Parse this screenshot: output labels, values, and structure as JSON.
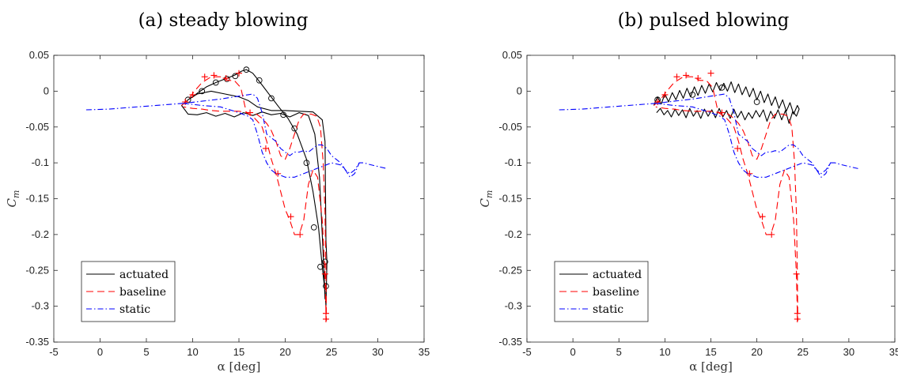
{
  "chart_data": [
    {
      "type": "line",
      "title": "(a) steady blowing",
      "xlabel": "α [deg]",
      "ylabel": "C_m",
      "xlim": [
        -5,
        35
      ],
      "ylim": [
        -0.35,
        0.05
      ],
      "xticks": [
        -5,
        0,
        5,
        10,
        15,
        20,
        25,
        30,
        35
      ],
      "yticks": [
        0.05,
        0,
        -0.05,
        -0.1,
        -0.15,
        -0.2,
        -0.25,
        -0.3,
        -0.35
      ],
      "ytick_labels": [
        "0.05",
        "0",
        "-0.05",
        "-0.1",
        "-0.15",
        "-0.2",
        "-0.25",
        "-0.3",
        "-0.35"
      ],
      "grid": false,
      "legend_position": "bottom-left",
      "series": [
        {
          "name": "actuated",
          "color": "#000000",
          "style": "solid",
          "marker": "circle",
          "x": [
            8.8,
            9.5,
            10.5,
            11.5,
            12.5,
            13.5,
            14.5,
            15.3,
            15.8,
            16.5,
            17.3,
            18.3,
            19.3,
            20.3,
            21.3,
            22.3,
            23.0,
            23.6,
            24.0,
            24.3,
            24.4,
            24.5,
            24.4,
            24.3,
            24.0,
            23.0,
            21.5,
            20.0,
            18.5,
            17.0,
            16.0,
            15.0,
            13.5,
            12.0,
            10.5,
            9.5,
            8.8,
            9.5,
            10.5,
            11.5,
            12.5,
            13.5,
            14.5,
            15.5,
            16.5,
            17.5,
            18.5,
            19.5,
            20.5,
            21.5,
            22.5,
            23.2,
            23.7,
            24.0,
            24.2,
            24.3
          ],
          "y": [
            -0.02,
            -0.012,
            -0.003,
            0.006,
            0.012,
            0.017,
            0.022,
            0.028,
            0.03,
            0.025,
            0.012,
            -0.005,
            -0.022,
            -0.038,
            -0.06,
            -0.095,
            -0.14,
            -0.19,
            -0.245,
            -0.28,
            -0.3,
            -0.238,
            -0.21,
            -0.07,
            -0.04,
            -0.029,
            -0.028,
            -0.027,
            -0.027,
            -0.022,
            -0.013,
            -0.008,
            -0.004,
            0.0,
            -0.004,
            -0.012,
            -0.02,
            -0.032,
            -0.033,
            -0.03,
            -0.035,
            -0.031,
            -0.036,
            -0.03,
            -0.034,
            -0.029,
            -0.033,
            -0.031,
            -0.036,
            -0.03,
            -0.034,
            -0.06,
            -0.12,
            -0.2,
            -0.255,
            -0.29
          ],
          "marker_x": [
            9.5,
            11.0,
            12.5,
            13.7,
            14.6,
            15.8,
            17.2,
            18.5,
            19.8,
            21.0,
            22.3,
            23.1,
            23.8,
            24.3,
            24.4
          ],
          "marker_y": [
            -0.012,
            0.0,
            0.012,
            0.017,
            0.021,
            0.03,
            0.015,
            -0.01,
            -0.033,
            -0.052,
            -0.1,
            -0.19,
            -0.245,
            -0.238,
            -0.272
          ]
        },
        {
          "name": "baseline",
          "color": "#ff0000",
          "style": "dashed",
          "marker": "plus",
          "x": [
            8.8,
            9.5,
            10.2,
            11.0,
            12.0,
            13.0,
            13.8,
            14.5,
            15.2,
            15.8,
            16.5,
            17.0,
            17.5,
            18.0,
            18.5,
            19.0,
            19.5,
            20.0,
            20.5,
            21.0,
            21.5,
            22.0,
            22.5,
            23.0,
            23.5,
            24.0,
            24.3,
            24.4,
            24.45,
            24.4,
            24.3,
            24.1,
            23.8,
            23.4,
            22.8,
            22.0,
            21.5,
            21.0,
            20.5,
            20.0,
            19.5,
            19.0,
            18.5,
            18.0,
            17.5,
            17.0,
            16.5,
            16.0,
            15.0,
            14.0,
            13.0,
            12.0,
            11.0,
            10.0,
            9.0
          ],
          "y": [
            -0.02,
            -0.012,
            0.0,
            0.012,
            0.02,
            0.02,
            0.015,
            0.015,
            0.005,
            -0.03,
            -0.035,
            -0.042,
            -0.05,
            -0.07,
            -0.095,
            -0.115,
            -0.14,
            -0.165,
            -0.18,
            -0.2,
            -0.2,
            -0.18,
            -0.13,
            -0.11,
            -0.12,
            -0.18,
            -0.255,
            -0.31,
            -0.32,
            -0.255,
            -0.17,
            -0.1,
            -0.05,
            -0.035,
            -0.032,
            -0.032,
            -0.04,
            -0.06,
            -0.08,
            -0.095,
            -0.09,
            -0.07,
            -0.055,
            -0.045,
            -0.038,
            -0.033,
            -0.03,
            -0.03,
            -0.028,
            -0.028,
            -0.028,
            -0.027,
            -0.025,
            -0.024,
            -0.022
          ],
          "marker_x": [
            9.2,
            10.0,
            11.3,
            12.3,
            13.6,
            15.0,
            16.2,
            17.9,
            19.2,
            20.6,
            21.6,
            24.3,
            24.4,
            24.4
          ],
          "marker_y": [
            -0.015,
            -0.005,
            0.02,
            0.022,
            0.018,
            0.025,
            -0.03,
            -0.08,
            -0.115,
            -0.175,
            -0.2,
            -0.255,
            -0.31,
            -0.318
          ]
        },
        {
          "name": "static",
          "color": "#0000ff",
          "style": "dashdot",
          "x": [
            -1.5,
            1.0,
            3.0,
            5.0,
            7.0,
            9.0,
            11.0,
            13.0,
            15.0,
            16.0,
            16.5,
            17.0,
            17.5,
            18.0,
            18.5,
            19.0,
            19.5,
            20.0,
            20.5,
            21.0,
            21.5,
            22.0,
            22.5,
            23.0,
            23.5,
            24.0,
            24.5,
            25.0,
            25.5,
            26.0,
            26.5,
            27.0,
            27.5,
            28.0,
            28.5,
            29.0,
            30.0,
            31.0
          ],
          "y": [
            -0.026,
            -0.025,
            -0.023,
            -0.021,
            -0.019,
            -0.017,
            -0.014,
            -0.011,
            -0.007,
            -0.005,
            -0.004,
            -0.01,
            -0.03,
            -0.06,
            -0.065,
            -0.07,
            -0.08,
            -0.085,
            -0.09,
            -0.085,
            -0.085,
            -0.083,
            -0.085,
            -0.08,
            -0.075,
            -0.075,
            -0.08,
            -0.09,
            -0.095,
            -0.1,
            -0.11,
            -0.115,
            -0.11,
            -0.1,
            -0.1,
            -0.102,
            -0.105,
            -0.108
          ]
        },
        {
          "name": "",
          "color": "#0000ff",
          "style": "dashdot",
          "x": [
            9.0,
            11.0,
            13.0,
            15.0,
            16.0,
            16.5,
            17.0,
            17.5,
            18.0,
            18.5,
            19.0,
            20.0,
            21.0,
            22.0,
            23.0,
            24.0,
            25.0,
            26.0,
            26.5,
            27.0,
            27.5,
            28.0
          ],
          "y": [
            -0.017,
            -0.02,
            -0.022,
            -0.03,
            -0.035,
            -0.04,
            -0.06,
            -0.085,
            -0.1,
            -0.11,
            -0.115,
            -0.12,
            -0.12,
            -0.115,
            -0.11,
            -0.105,
            -0.1,
            -0.103,
            -0.11,
            -0.12,
            -0.115,
            -0.1
          ]
        }
      ]
    },
    {
      "type": "line",
      "title": "(b) pulsed blowing",
      "xlabel": "α [deg]",
      "ylabel": "C_m",
      "xlim": [
        -5,
        35
      ],
      "ylim": [
        -0.35,
        0.05
      ],
      "xticks": [
        -5,
        0,
        5,
        10,
        15,
        20,
        25,
        30,
        35
      ],
      "yticks": [
        0.05,
        0,
        -0.05,
        -0.1,
        -0.15,
        -0.2,
        -0.25,
        -0.3,
        -0.35
      ],
      "ytick_labels": [
        "0.05",
        "0",
        "-0.05",
        "-0.1",
        "-0.15",
        "-0.2",
        "-0.25",
        "-0.3",
        "-0.35"
      ],
      "grid": false,
      "legend_position": "bottom-left",
      "series": [
        {
          "name": "actuated",
          "color": "#000000",
          "style": "solid",
          "marker": "circle",
          "x": [
            8.8,
            9.2,
            9.6,
            10.0,
            10.4,
            10.8,
            11.2,
            11.6,
            12.0,
            12.4,
            12.8,
            13.2,
            13.6,
            14.0,
            14.4,
            14.8,
            15.2,
            15.6,
            16.0,
            16.4,
            16.8,
            17.2,
            17.6,
            18.0,
            18.4,
            18.8,
            19.2,
            19.6,
            20.0,
            20.4,
            20.8,
            21.2,
            21.6,
            22.0,
            22.4,
            22.8,
            23.2,
            23.6,
            24.0,
            24.4,
            24.6,
            24.3,
            23.9,
            23.5,
            23.1,
            22.7,
            22.3,
            21.9,
            21.5,
            21.1,
            20.7,
            20.3,
            19.9,
            19.5,
            19.1,
            18.7,
            18.3,
            17.9,
            17.5,
            17.1,
            16.7,
            16.3,
            15.9,
            15.5,
            15.1,
            14.7,
            14.3,
            13.9,
            13.5,
            13.1,
            12.7,
            12.3,
            11.9,
            11.5,
            11.1,
            10.7,
            10.3,
            9.9,
            9.5,
            9.1
          ],
          "y": [
            -0.02,
            -0.008,
            -0.018,
            -0.004,
            -0.015,
            -0.002,
            -0.012,
            0.001,
            -0.01,
            0.004,
            -0.008,
            0.006,
            -0.006,
            0.008,
            -0.003,
            0.01,
            -0.001,
            0.012,
            0.001,
            0.011,
            0.0,
            0.013,
            -0.002,
            0.01,
            -0.005,
            0.006,
            -0.008,
            0.004,
            -0.012,
            0.0,
            -0.016,
            -0.004,
            -0.02,
            -0.008,
            -0.024,
            -0.012,
            -0.028,
            -0.016,
            -0.032,
            -0.02,
            -0.025,
            -0.035,
            -0.028,
            -0.045,
            -0.027,
            -0.04,
            -0.026,
            -0.038,
            -0.028,
            -0.042,
            -0.026,
            -0.036,
            -0.027,
            -0.038,
            -0.03,
            -0.04,
            -0.028,
            -0.037,
            -0.025,
            -0.038,
            -0.027,
            -0.036,
            -0.024,
            -0.037,
            -0.026,
            -0.035,
            -0.025,
            -0.038,
            -0.027,
            -0.035,
            -0.024,
            -0.037,
            -0.026,
            -0.034,
            -0.025,
            -0.036,
            -0.027,
            -0.033,
            -0.024,
            -0.03
          ],
          "marker_x": [
            9.2,
            13.0,
            16.2,
            20.0
          ],
          "marker_y": [
            -0.012,
            -0.005,
            0.005,
            -0.015
          ]
        },
        {
          "name": "baseline",
          "color": "#ff0000",
          "style": "dashed",
          "marker": "plus",
          "x": [
            8.8,
            9.5,
            10.2,
            11.0,
            12.0,
            13.0,
            13.8,
            14.5,
            15.2,
            15.8,
            16.5,
            17.0,
            17.5,
            18.0,
            18.5,
            19.0,
            19.5,
            20.0,
            20.5,
            21.0,
            21.5,
            22.0,
            22.5,
            23.0,
            23.5,
            24.0,
            24.3,
            24.4,
            24.45,
            24.4,
            24.3,
            24.1,
            23.8,
            23.4,
            22.8,
            22.0,
            21.5,
            21.0,
            20.5,
            20.0,
            19.5,
            19.0,
            18.5,
            18.0,
            17.5,
            17.0,
            16.5,
            16.0,
            15.0,
            14.0,
            13.0,
            12.0,
            11.0,
            10.0,
            9.0
          ],
          "y": [
            -0.02,
            -0.012,
            0.0,
            0.012,
            0.02,
            0.02,
            0.015,
            0.015,
            0.005,
            -0.03,
            -0.035,
            -0.042,
            -0.05,
            -0.07,
            -0.095,
            -0.115,
            -0.14,
            -0.165,
            -0.18,
            -0.2,
            -0.2,
            -0.18,
            -0.13,
            -0.11,
            -0.12,
            -0.18,
            -0.255,
            -0.31,
            -0.32,
            -0.255,
            -0.17,
            -0.1,
            -0.05,
            -0.035,
            -0.032,
            -0.032,
            -0.04,
            -0.06,
            -0.08,
            -0.095,
            -0.09,
            -0.07,
            -0.055,
            -0.045,
            -0.038,
            -0.033,
            -0.03,
            -0.03,
            -0.028,
            -0.028,
            -0.028,
            -0.027,
            -0.025,
            -0.024,
            -0.022
          ],
          "marker_x": [
            9.2,
            10.0,
            11.3,
            12.3,
            13.6,
            15.0,
            16.2,
            17.9,
            19.2,
            20.6,
            21.6,
            24.3,
            24.4,
            24.4
          ],
          "marker_y": [
            -0.015,
            -0.005,
            0.02,
            0.022,
            0.018,
            0.025,
            -0.03,
            -0.08,
            -0.115,
            -0.175,
            -0.2,
            -0.255,
            -0.31,
            -0.318
          ]
        },
        {
          "name": "static",
          "color": "#0000ff",
          "style": "dashdot",
          "x": [
            -1.5,
            1.0,
            3.0,
            5.0,
            7.0,
            9.0,
            11.0,
            13.0,
            15.0,
            16.0,
            16.5,
            17.0,
            17.5,
            18.0,
            18.5,
            19.0,
            19.5,
            20.0,
            20.5,
            21.0,
            21.5,
            22.0,
            22.5,
            23.0,
            23.5,
            24.0,
            24.5,
            25.0,
            25.5,
            26.0,
            26.5,
            27.0,
            27.5,
            28.0,
            28.5,
            29.0,
            30.0,
            31.0
          ],
          "y": [
            -0.026,
            -0.025,
            -0.023,
            -0.021,
            -0.019,
            -0.017,
            -0.014,
            -0.011,
            -0.007,
            -0.005,
            -0.004,
            -0.01,
            -0.03,
            -0.06,
            -0.065,
            -0.07,
            -0.08,
            -0.085,
            -0.09,
            -0.085,
            -0.085,
            -0.083,
            -0.085,
            -0.08,
            -0.075,
            -0.075,
            -0.08,
            -0.09,
            -0.095,
            -0.1,
            -0.11,
            -0.115,
            -0.11,
            -0.1,
            -0.1,
            -0.102,
            -0.105,
            -0.108
          ]
        },
        {
          "name": "",
          "color": "#0000ff",
          "style": "dashdot",
          "x": [
            9.0,
            11.0,
            13.0,
            15.0,
            16.0,
            16.5,
            17.0,
            17.5,
            18.0,
            18.5,
            19.0,
            20.0,
            21.0,
            22.0,
            23.0,
            24.0,
            25.0,
            26.0,
            26.5,
            27.0,
            27.5,
            28.0
          ],
          "y": [
            -0.017,
            -0.02,
            -0.022,
            -0.03,
            -0.035,
            -0.04,
            -0.06,
            -0.085,
            -0.1,
            -0.11,
            -0.115,
            -0.12,
            -0.12,
            -0.115,
            -0.11,
            -0.105,
            -0.1,
            -0.103,
            -0.11,
            -0.12,
            -0.115,
            -0.1
          ]
        }
      ]
    }
  ]
}
